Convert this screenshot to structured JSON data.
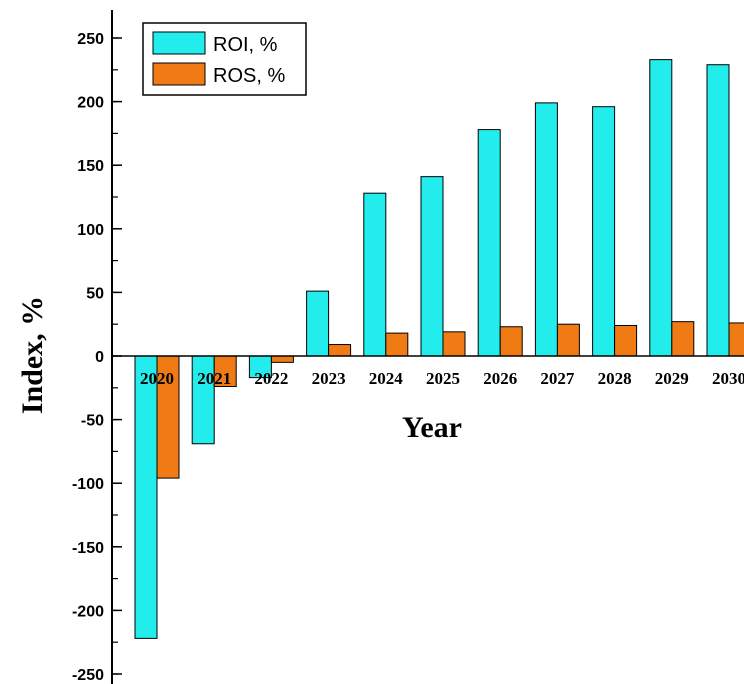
{
  "chart_data": {
    "type": "bar",
    "xlabel": "Year",
    "ylabel": "Index, %",
    "ylim": [
      -250,
      250
    ],
    "yticks": [
      250,
      200,
      150,
      100,
      50,
      0,
      -50,
      -100,
      -150,
      -200,
      -250
    ],
    "categories": [
      "2020",
      "2021",
      "2022",
      "2023",
      "2024",
      "2025",
      "2026",
      "2027",
      "2028",
      "2029",
      "2030"
    ],
    "series": [
      {
        "name": "ROI, %",
        "color": "#22ecec",
        "values": [
          -222,
          -69,
          -17,
          51,
          128,
          141,
          178,
          199,
          196,
          233,
          229
        ]
      },
      {
        "name": "ROS, %",
        "color": "#f07a14",
        "values": [
          -96,
          -24,
          -5,
          9,
          18,
          19,
          23,
          25,
          24,
          27,
          26
        ]
      }
    ],
    "legend_position": "top-left",
    "grid": false
  }
}
